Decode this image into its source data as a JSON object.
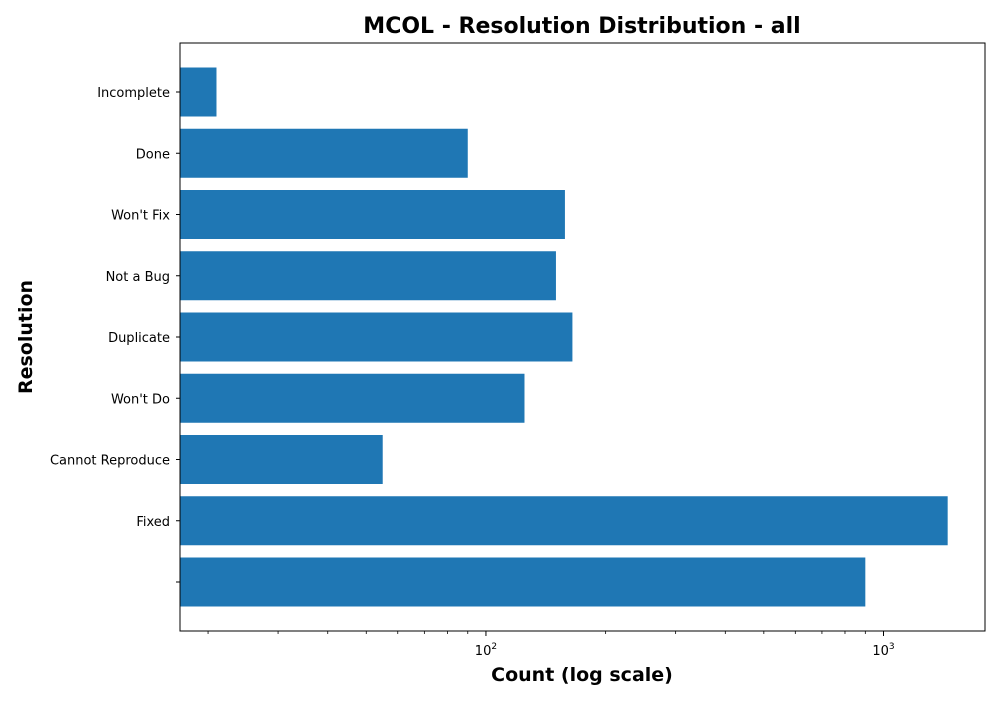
{
  "chart_data": {
    "type": "bar",
    "orientation": "horizontal",
    "title": "MCOL - Resolution Distribution - all",
    "xlabel": "Count (log scale)",
    "ylabel": "Resolution",
    "x_scale": "log",
    "xlim": [
      17,
      1800
    ],
    "x_major_ticks": [
      {
        "value": 100,
        "base": "10",
        "exp": "2"
      },
      {
        "value": 1000,
        "base": "10",
        "exp": "3"
      }
    ],
    "x_minor_ticks": [
      20,
      30,
      40,
      50,
      60,
      70,
      80,
      90,
      200,
      300,
      400,
      500,
      600,
      700,
      800,
      900
    ],
    "categories": [
      "",
      "Fixed",
      "Cannot Reproduce",
      "Won't Do",
      "Duplicate",
      "Not a Bug",
      "Won't Fix",
      "Done",
      "Incomplete"
    ],
    "values": [
      900,
      1450,
      55,
      125,
      165,
      150,
      158,
      90,
      21
    ],
    "bar_color": "#1f77b4",
    "grid": false,
    "legend": "none"
  }
}
